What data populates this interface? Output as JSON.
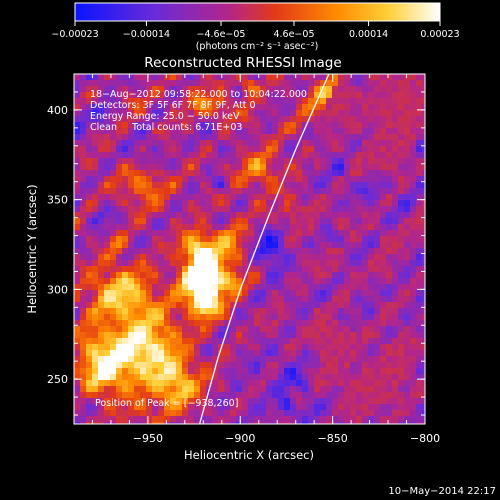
{
  "chart_data": {
    "type": "heatmap",
    "title": "Reconstructed RHESSI Image",
    "xlabel": "Heliocentric X (arcsec)",
    "ylabel": "Heliocentric Y (arcsec)",
    "xlim": [
      -990,
      -800
    ],
    "ylim": [
      225,
      420
    ],
    "x_ticks": [
      -950,
      -900,
      -850,
      -800
    ],
    "y_ticks": [
      250,
      300,
      350,
      400
    ],
    "x_tick_labels": [
      "−950",
      "−900",
      "−850",
      "−800"
    ],
    "y_tick_labels": [
      "250",
      "300",
      "350",
      "400"
    ],
    "colorbar": {
      "range": [
        -0.00023,
        0.00023
      ],
      "tick_values": [
        -0.00023,
        -0.00014,
        -4.6e-05,
        4.6e-05,
        0.00014,
        0.00023
      ],
      "tick_labels": [
        "−0.00023",
        "−0.00014",
        "−4.6e−05",
        "4.6e−05",
        "0.00014",
        "0.00023"
      ],
      "units": "(photons cm⁻² s⁻¹ asec⁻²)",
      "colors": [
        "#0a14ff",
        "#7a2bd8",
        "#c0267a",
        "#e23a16",
        "#ff8c00",
        "#ffd03a",
        "#ffffff"
      ]
    },
    "annotations": [
      "18−Aug−2012 09:58:22.000 to 10:04:22.000",
      "Detectors: 3F 5F 6F 7F 8F 9F, Att 0",
      "Energy Range: 25.0 − 50.0 keV",
      "Clean     Total counts: 6.71E+03"
    ],
    "peak_label": "Position of Peak = [−938,260]",
    "peak_position": [
      -938,
      260
    ],
    "limb_curve": [
      [
        -922,
        225
      ],
      [
        -912,
        262
      ],
      [
        -900,
        300
      ],
      [
        -885,
        340
      ],
      [
        -870,
        378
      ],
      [
        -852,
        420
      ]
    ]
  },
  "footer": {
    "timestamp": "10−May−2014 22:17"
  }
}
